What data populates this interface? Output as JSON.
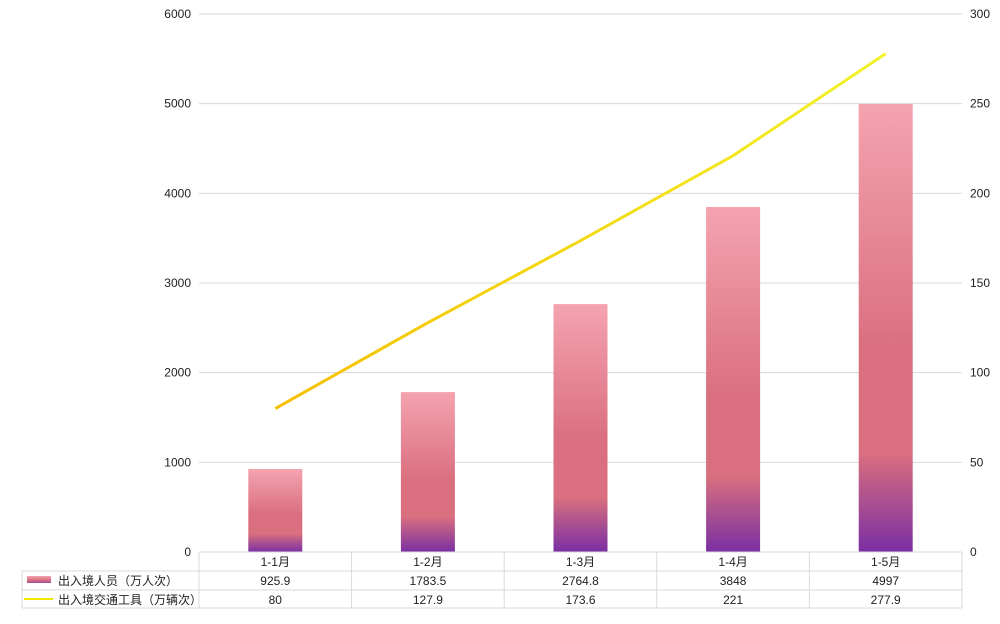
{
  "chart_data": {
    "type": "bar",
    "categories": [
      "1-1月",
      "1-2月",
      "1-3月",
      "1-4月",
      "1-5月"
    ],
    "series": [
      {
        "name": "出入境人员（万人次）",
        "type": "bar",
        "axis": "left",
        "values": [
          925.9,
          1783.5,
          2764.8,
          3848,
          4997
        ],
        "colors": {
          "top": "#f5a3af",
          "middle": "#d96f7f",
          "bottom": "#7a2fa3"
        }
      },
      {
        "name": "出入境交通工具（万辆次）",
        "type": "line",
        "axis": "right",
        "values": [
          80,
          127.9,
          173.6,
          221,
          277.9
        ],
        "colors": {
          "start": "#f5c000",
          "end": "#f2f22a"
        }
      }
    ],
    "y_left": {
      "range": [
        0,
        6000
      ],
      "ticks": [
        "0",
        "1000",
        "2000",
        "3000",
        "4000",
        "5000",
        "6000"
      ]
    },
    "y_right": {
      "range": [
        0,
        300
      ],
      "ticks": [
        "0",
        "50",
        "100",
        "150",
        "200",
        "250",
        "300"
      ]
    },
    "grid": true,
    "legend": "data-table-bottom",
    "data_table": true
  }
}
